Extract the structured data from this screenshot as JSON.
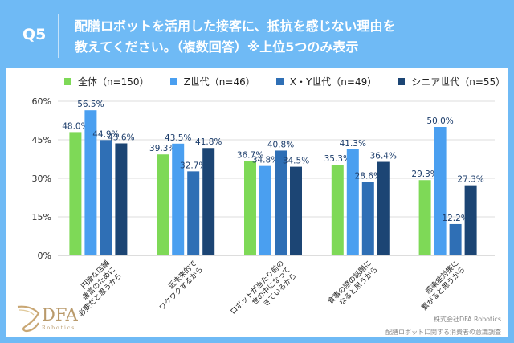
{
  "header": {
    "question_label": "Q5",
    "title_line1": "配膳ロボットを活用した接客に、抵抗を感じない理由を",
    "title_line2": "教えてください。（複数回答）※上位5つのみ表示"
  },
  "footer": {
    "logo_text": "DFA",
    "logo_subtext": "Robotics",
    "source_line1": "株式会社DFA Robotics",
    "source_line2": "配膳ロボットに関する消費者の意識調査"
  },
  "colors": {
    "background": "#6fbaf5",
    "series": [
      "#7ed957",
      "#4a9ff0",
      "#2f6fb5",
      "#1c4574"
    ],
    "label_text": "#1c3d6b"
  },
  "chart_data": {
    "type": "bar",
    "title": "配膳ロボットを活用した接客に、抵抗を感じない理由を教えてください。（複数回答）※上位5つのみ表示",
    "xlabel": "",
    "ylabel": "",
    "ylim": [
      0,
      60
    ],
    "yticks": [
      "0%",
      "15%",
      "30%",
      "45%",
      "60%"
    ],
    "ytick_values": [
      0,
      15,
      30,
      45,
      60
    ],
    "grid": true,
    "legend_position": "top",
    "categories": [
      [
        "円滑な店舗",
        "運営のために",
        "必要だと思うから"
      ],
      [
        "近未来的で",
        "ワクワクするから"
      ],
      [
        "ロボットが当たり前の",
        "世の中になって",
        "きているから"
      ],
      [
        "食事の際の話題に",
        "なると思うから"
      ],
      [
        "感染症対策に",
        "繋がると思うから"
      ]
    ],
    "series": [
      {
        "name": "全体（n=150）",
        "values": [
          48.0,
          39.3,
          36.7,
          35.3,
          29.3
        ]
      },
      {
        "name": "Z世代（n=46）",
        "values": [
          56.5,
          43.5,
          34.8,
          41.3,
          50.0
        ]
      },
      {
        "name": "X・Y世代（n=49）",
        "values": [
          44.9,
          32.7,
          40.8,
          28.6,
          12.2
        ]
      },
      {
        "name": "シニア世代（n=55）",
        "values": [
          43.6,
          41.8,
          34.5,
          36.4,
          27.3
        ]
      }
    ]
  }
}
